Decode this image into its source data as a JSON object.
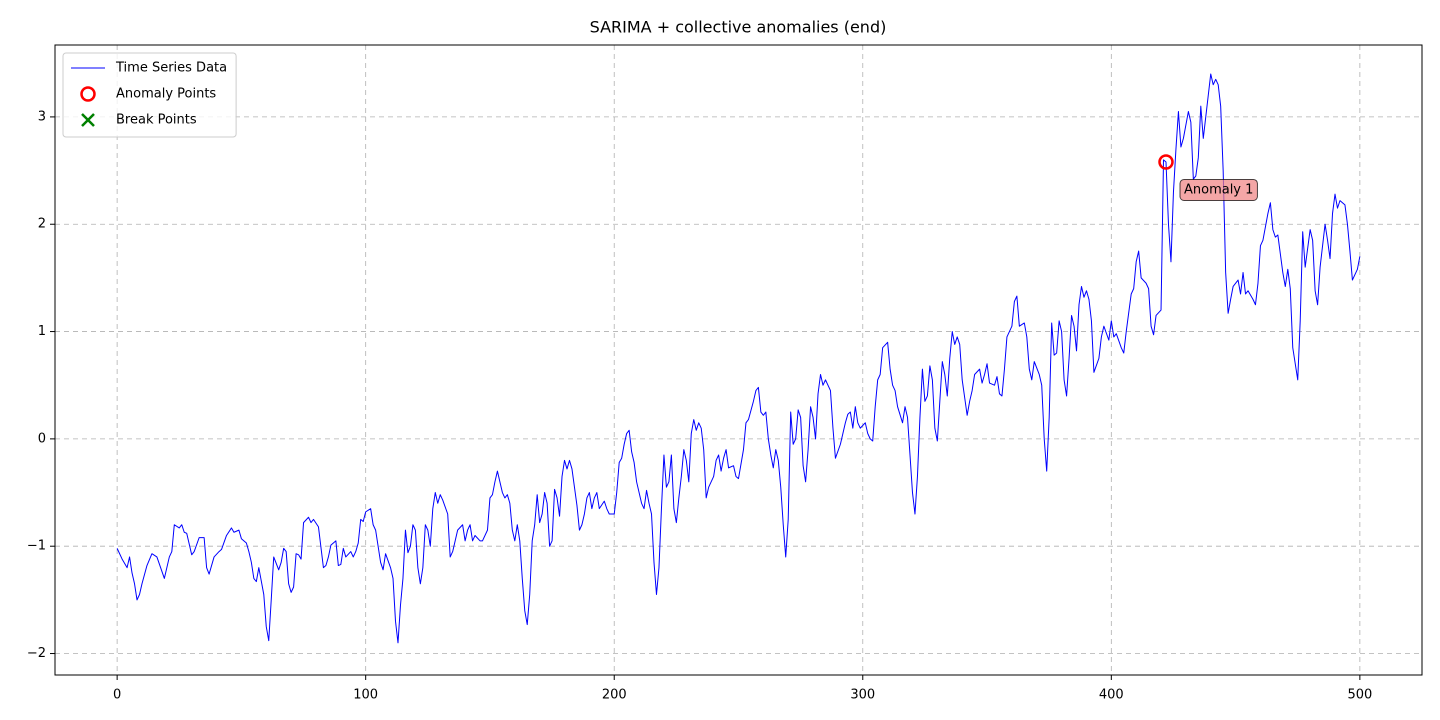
{
  "chart_data": {
    "type": "line",
    "title": "SARIMA + collective anomalies (end)",
    "xlim": [
      -25,
      525
    ],
    "ylim": [
      -2.2,
      3.67
    ],
    "xticks": [
      0,
      100,
      200,
      300,
      400,
      500
    ],
    "yticks": [
      {
        "value": -2,
        "label": "−2"
      },
      {
        "value": -1,
        "label": "−1"
      },
      0,
      1,
      2,
      3
    ],
    "grid": true,
    "legend": "upper left",
    "series": [
      {
        "name": "Time Series Data",
        "type": "line",
        "color": "#0000ff",
        "x": [
          0,
          2,
          4,
          5,
          6,
          7,
          8,
          9,
          10,
          12,
          14,
          16,
          19,
          21,
          22,
          23,
          25,
          26,
          27,
          28,
          30,
          31,
          33,
          35,
          36,
          37,
          39,
          41,
          42,
          44,
          46,
          47,
          49,
          50,
          52,
          53,
          54,
          55,
          56,
          57,
          59,
          60,
          61,
          62,
          63,
          65,
          66,
          67,
          68,
          69,
          70,
          71,
          72,
          73,
          74,
          75,
          77,
          78,
          79,
          81,
          83,
          84,
          85,
          86,
          88,
          89,
          90,
          91,
          92,
          94,
          95,
          96,
          97,
          98,
          99,
          100,
          102,
          103,
          104,
          106,
          107,
          108,
          110,
          111,
          112,
          113,
          114,
          115,
          116,
          117,
          118,
          119,
          120,
          121,
          122,
          123,
          124,
          125,
          126,
          127,
          128,
          129,
          130,
          131,
          133,
          134,
          135,
          136,
          137,
          139,
          140,
          141,
          142,
          143,
          144,
          146,
          147,
          149,
          150,
          151,
          152,
          153,
          155,
          156,
          157,
          158,
          159,
          160,
          161,
          162,
          163,
          164,
          165,
          166,
          167,
          168,
          169,
          170,
          171,
          172,
          173,
          174,
          175,
          176,
          177,
          178,
          179,
          180,
          181,
          182,
          183,
          184,
          185,
          186,
          187,
          188,
          189,
          190,
          191,
          192,
          193,
          194,
          196,
          197,
          198,
          200,
          201,
          202,
          203,
          204,
          205,
          206,
          207,
          208,
          209,
          211,
          212,
          213,
          214,
          215,
          216,
          217,
          218,
          219,
          220,
          221,
          222,
          223,
          224,
          225,
          226,
          227,
          228,
          229,
          230,
          231,
          232,
          233,
          234,
          235,
          236,
          237,
          238,
          240,
          241,
          242,
          243,
          244,
          245,
          246,
          248,
          249,
          250,
          252,
          253,
          254,
          256,
          257,
          258,
          259,
          260,
          261,
          262,
          263,
          264,
          265,
          266,
          267,
          268,
          269,
          270,
          271,
          272,
          273,
          274,
          275,
          276,
          277,
          278,
          279,
          280,
          281,
          282,
          283,
          284,
          285,
          287,
          288,
          289,
          291,
          292,
          293,
          294,
          295,
          296,
          297,
          298,
          299,
          301,
          302,
          303,
          304,
          305,
          306,
          307,
          308,
          310,
          311,
          312,
          313,
          314,
          316,
          317,
          318,
          319,
          320,
          321,
          322,
          323,
          324,
          325,
          326,
          327,
          328,
          329,
          330,
          331,
          332,
          333,
          334,
          335,
          336,
          337,
          338,
          339,
          340,
          342,
          343,
          344,
          345,
          347,
          348,
          349,
          350,
          351,
          353,
          354,
          355,
          356,
          357,
          358,
          360,
          361,
          362,
          363,
          365,
          366,
          367,
          368,
          369,
          371,
          372,
          373,
          374,
          375,
          376,
          377,
          378,
          379,
          380,
          381,
          382,
          383,
          384,
          385,
          386,
          387,
          388,
          389,
          390,
          391,
          392,
          393,
          395,
          396,
          397,
          399,
          400,
          401,
          402,
          404,
          405,
          406,
          408,
          409,
          410,
          411,
          412,
          414,
          415,
          416,
          417,
          418,
          420,
          421,
          422,
          423,
          424,
          425,
          426,
          427,
          428,
          429,
          431,
          432,
          433,
          434,
          435,
          436,
          437,
          439,
          440,
          441,
          442,
          443,
          444,
          445,
          446,
          447,
          448,
          449,
          451,
          452,
          453,
          454,
          455,
          457,
          458,
          459,
          460,
          461,
          463,
          464,
          465,
          466,
          467,
          469,
          470,
          471,
          472,
          473,
          475,
          476,
          477,
          478,
          480,
          481,
          482,
          483,
          484,
          486,
          487,
          488,
          489,
          490,
          491,
          492,
          494,
          495,
          496,
          497,
          499,
          500
        ],
        "values": [
          -1.02,
          -1.12,
          -1.2,
          -1.1,
          -1.25,
          -1.35,
          -1.5,
          -1.45,
          -1.35,
          -1.18,
          -1.07,
          -1.1,
          -1.3,
          -1.1,
          -1.05,
          -0.8,
          -0.83,
          -0.8,
          -0.87,
          -0.88,
          -1.08,
          -1.05,
          -0.92,
          -0.92,
          -1.2,
          -1.26,
          -1.1,
          -1.05,
          -1.03,
          -0.9,
          -0.83,
          -0.87,
          -0.85,
          -0.93,
          -0.97,
          -1.05,
          -1.15,
          -1.3,
          -1.33,
          -1.2,
          -1.45,
          -1.75,
          -1.88,
          -1.5,
          -1.1,
          -1.22,
          -1.15,
          -1.02,
          -1.05,
          -1.35,
          -1.43,
          -1.38,
          -1.07,
          -1.08,
          -1.12,
          -0.78,
          -0.73,
          -0.78,
          -0.75,
          -0.82,
          -1.2,
          -1.18,
          -1.1,
          -0.99,
          -0.95,
          -1.18,
          -1.17,
          -1.02,
          -1.1,
          -1.05,
          -1.1,
          -1.05,
          -0.97,
          -0.75,
          -0.77,
          -0.68,
          -0.65,
          -0.8,
          -0.85,
          -1.15,
          -1.22,
          -1.07,
          -1.2,
          -1.3,
          -1.7,
          -1.9,
          -1.55,
          -1.3,
          -0.85,
          -1.06,
          -1.0,
          -0.8,
          -0.85,
          -1.2,
          -1.35,
          -1.2,
          -0.8,
          -0.85,
          -1.0,
          -0.65,
          -0.5,
          -0.6,
          -0.52,
          -0.57,
          -0.7,
          -1.1,
          -1.05,
          -0.95,
          -0.85,
          -0.8,
          -0.95,
          -0.85,
          -0.8,
          -0.95,
          -0.9,
          -0.95,
          -0.95,
          -0.85,
          -0.55,
          -0.52,
          -0.4,
          -0.3,
          -0.5,
          -0.55,
          -0.52,
          -0.6,
          -0.85,
          -0.95,
          -0.8,
          -0.95,
          -1.3,
          -1.6,
          -1.73,
          -1.45,
          -0.95,
          -0.8,
          -0.52,
          -0.78,
          -0.7,
          -0.5,
          -0.6,
          -1.0,
          -0.95,
          -0.47,
          -0.55,
          -0.72,
          -0.35,
          -0.2,
          -0.28,
          -0.2,
          -0.28,
          -0.45,
          -0.62,
          -0.85,
          -0.8,
          -0.7,
          -0.55,
          -0.5,
          -0.65,
          -0.55,
          -0.5,
          -0.65,
          -0.58,
          -0.65,
          -0.7,
          -0.7,
          -0.5,
          -0.22,
          -0.18,
          -0.05,
          0.05,
          0.08,
          -0.12,
          -0.22,
          -0.4,
          -0.6,
          -0.65,
          -0.48,
          -0.6,
          -0.7,
          -1.15,
          -1.45,
          -1.2,
          -0.65,
          -0.15,
          -0.45,
          -0.4,
          -0.15,
          -0.65,
          -0.78,
          -0.55,
          -0.35,
          -0.1,
          -0.2,
          -0.4,
          0.05,
          0.18,
          0.08,
          0.15,
          0.1,
          -0.1,
          -0.55,
          -0.45,
          -0.35,
          -0.2,
          -0.15,
          -0.3,
          -0.18,
          -0.1,
          -0.27,
          -0.25,
          -0.35,
          -0.37,
          -0.1,
          0.15,
          0.18,
          0.35,
          0.45,
          0.48,
          0.25,
          0.22,
          0.25,
          0.0,
          -0.15,
          -0.27,
          -0.1,
          -0.2,
          -0.45,
          -0.8,
          -1.1,
          -0.75,
          0.25,
          -0.05,
          0.0,
          0.27,
          0.2,
          -0.25,
          -0.4,
          -0.1,
          0.3,
          0.2,
          0.0,
          0.42,
          0.6,
          0.5,
          0.55,
          0.45,
          0.1,
          -0.18,
          -0.05,
          0.05,
          0.15,
          0.23,
          0.25,
          0.1,
          0.3,
          0.15,
          0.1,
          0.15,
          0.05,
          0.0,
          -0.02,
          0.3,
          0.55,
          0.6,
          0.85,
          0.9,
          0.65,
          0.5,
          0.45,
          0.3,
          0.15,
          0.3,
          0.2,
          -0.15,
          -0.5,
          -0.7,
          -0.35,
          0.2,
          0.65,
          0.35,
          0.4,
          0.68,
          0.55,
          0.1,
          -0.02,
          0.35,
          0.72,
          0.6,
          0.4,
          0.75,
          1.0,
          0.88,
          0.95,
          0.88,
          0.55,
          0.22,
          0.35,
          0.45,
          0.6,
          0.65,
          0.52,
          0.6,
          0.7,
          0.52,
          0.5,
          0.58,
          0.42,
          0.4,
          0.65,
          0.95,
          1.05,
          1.28,
          1.33,
          1.05,
          1.08,
          0.95,
          0.65,
          0.55,
          0.72,
          0.6,
          0.5,
          0.0,
          -0.3,
          0.2,
          1.08,
          0.78,
          0.8,
          1.1,
          1.0,
          0.55,
          0.4,
          0.75,
          1.15,
          1.05,
          0.82,
          1.25,
          1.42,
          1.32,
          1.38,
          1.3,
          1.1,
          0.62,
          0.75,
          0.95,
          1.05,
          0.92,
          1.1,
          0.95,
          0.98,
          0.85,
          0.8,
          1.0,
          1.35,
          1.4,
          1.65,
          1.75,
          1.5,
          1.45,
          1.4,
          1.05,
          0.97,
          1.15,
          1.2,
          2.6,
          2.58,
          2.0,
          1.65,
          2.3,
          2.7,
          3.05,
          2.72,
          2.8,
          3.05,
          2.95,
          2.42,
          2.45,
          2.62,
          3.1,
          2.8,
          3.2,
          3.4,
          3.3,
          3.35,
          3.3,
          3.1,
          2.5,
          1.55,
          1.17,
          1.3,
          1.42,
          1.48,
          1.35,
          1.55,
          1.35,
          1.38,
          1.3,
          1.25,
          1.45,
          1.8,
          1.85,
          2.1,
          2.2,
          1.95,
          1.88,
          1.9,
          1.55,
          1.42,
          1.58,
          1.4,
          0.85,
          0.55,
          1.1,
          1.93,
          1.6,
          1.95,
          1.85,
          1.38,
          1.25,
          1.6,
          2.0,
          1.85,
          1.68,
          2.1,
          2.28,
          2.15,
          2.22,
          2.18,
          2.0,
          1.75,
          1.48,
          1.58,
          1.7
        ]
      },
      {
        "name": "Anomaly Points",
        "type": "scatter",
        "marker": "circle",
        "color": "#ff0000",
        "x": [
          422
        ],
        "values": [
          2.58
        ]
      },
      {
        "name": "Break Points",
        "type": "scatter",
        "marker": "x",
        "color": "#008000",
        "x": [],
        "values": []
      }
    ],
    "annotations": [
      {
        "text": "Anomaly 1",
        "x": 422,
        "y": 2.58
      }
    ]
  }
}
